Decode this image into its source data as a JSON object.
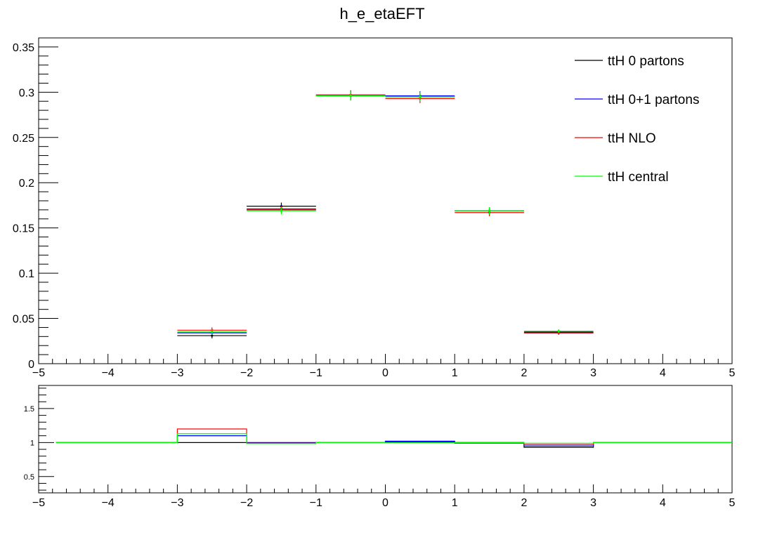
{
  "title": "h_e_etaEFT",
  "colors": {
    "ttH 0 partons": "#000000",
    "ttH 0+1 partons": "#0000ff",
    "ttH NLO": "#ff0000",
    "ttH central": "#00ff00"
  },
  "chart_data": [
    {
      "type": "line",
      "title": "h_e_etaEFT",
      "xlabel": "",
      "ylabel": "",
      "xlim": [
        -5,
        5
      ],
      "ylim": [
        0,
        0.36
      ],
      "x_ticks": [
        -5,
        -4,
        -3,
        -2,
        -1,
        0,
        1,
        2,
        3,
        4,
        5
      ],
      "x_tick_labels": [
        "−5",
        "−4",
        "−3",
        "−2",
        "−1",
        "0",
        "1",
        "2",
        "3",
        "4",
        "5"
      ],
      "y_ticks": [
        0,
        0.05,
        0.1,
        0.15,
        0.2,
        0.25,
        0.3,
        0.35
      ],
      "y_tick_labels": [
        "0",
        "0.05",
        "0.1",
        "0.15",
        "0.2",
        "0.25",
        "0.3",
        "0.35"
      ],
      "legend_position": "top-right",
      "grid": false,
      "bins": [
        [
          -3,
          -2
        ],
        [
          -2,
          -1
        ],
        [
          -1,
          0
        ],
        [
          0,
          1
        ],
        [
          1,
          2
        ],
        [
          2,
          3
        ]
      ],
      "series": [
        {
          "name": "ttH 0 partons",
          "values": [
            0.031,
            0.174,
            0.296,
            0.295,
            0.169,
            0.035
          ],
          "errors": [
            0.003,
            0.004,
            0.005,
            0.005,
            0.004,
            0.002
          ]
        },
        {
          "name": "ttH 0+1 partons",
          "values": [
            0.034,
            0.171,
            0.297,
            0.296,
            0.169,
            0.034
          ],
          "errors": [
            0.003,
            0.004,
            0.005,
            0.005,
            0.004,
            0.002
          ]
        },
        {
          "name": "ttH NLO",
          "values": [
            0.037,
            0.17,
            0.297,
            0.293,
            0.167,
            0.034
          ],
          "errors": [
            0.003,
            0.004,
            0.005,
            0.005,
            0.004,
            0.002
          ]
        },
        {
          "name": "ttH central",
          "values": [
            0.035,
            0.169,
            0.296,
            0.295,
            0.169,
            0.036
          ],
          "errors": [
            0.003,
            0.004,
            0.005,
            0.005,
            0.004,
            0.002
          ]
        }
      ]
    },
    {
      "type": "line",
      "xlabel": "",
      "ylabel": "",
      "xlim": [
        -5,
        5
      ],
      "ylim": [
        0.26,
        1.84
      ],
      "x_ticks": [
        -5,
        -4,
        -3,
        -2,
        -1,
        0,
        1,
        2,
        3,
        4,
        5
      ],
      "x_tick_labels": [
        "−5",
        "−4",
        "−3",
        "−2",
        "−1",
        "0",
        "1",
        "2",
        "3",
        "4",
        "5"
      ],
      "y_ticks": [
        0.5,
        1,
        1.5
      ],
      "y_tick_labels": [
        "0.5",
        "1",
        "1.5"
      ],
      "grid": false,
      "bin_edges": [
        -4.75,
        -3,
        -2,
        -1,
        0,
        1,
        2,
        3,
        5
      ],
      "series": [
        {
          "name": "ttH 0 partons",
          "values": [
            1.0,
            1.0,
            1.0,
            1.0,
            1.01,
            1.0,
            0.93,
            1.0
          ]
        },
        {
          "name": "ttH 0+1 partons",
          "values": [
            1.0,
            1.1,
            0.995,
            1.0,
            1.02,
            1.0,
            0.95,
            1.0
          ]
        },
        {
          "name": "ttH NLO",
          "values": [
            1.0,
            1.2,
            0.99,
            1.0,
            1.0,
            0.99,
            0.97,
            1.0
          ]
        },
        {
          "name": "ttH central",
          "values": [
            1.0,
            1.13,
            0.985,
            1.0,
            1.0,
            1.0,
            0.99,
            1.0
          ]
        }
      ]
    }
  ]
}
